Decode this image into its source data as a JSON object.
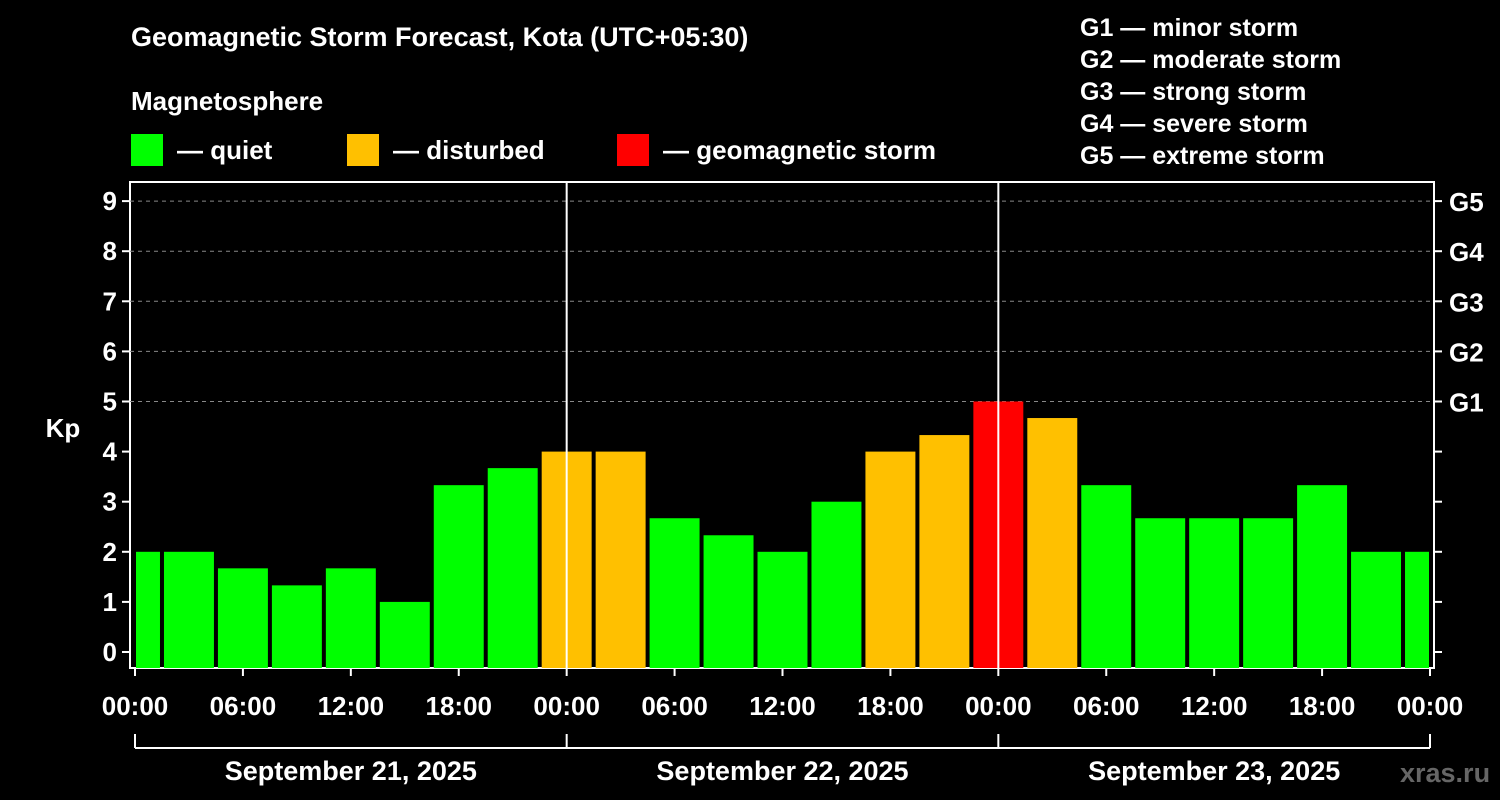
{
  "header": {
    "title": "Geomagnetic Storm Forecast, Kota (UTC+05:30)",
    "magnetosphere_label": "Magnetosphere"
  },
  "legend": [
    {
      "label": "— quiet",
      "color": "#00ff00"
    },
    {
      "label": "— disturbed",
      "color": "#ffc000"
    },
    {
      "label": "— geomagnetic storm",
      "color": "#ff0000"
    }
  ],
  "g_scale": [
    "G1 — minor storm",
    "G2 — moderate storm",
    "G3 — strong storm",
    "G4 — severe storm",
    "G5 — extreme storm"
  ],
  "watermark": "xras.ru",
  "chart_data": {
    "type": "bar",
    "title": "Geomagnetic Storm Forecast, Kota (UTC+05:30)",
    "ylabel": "Kp",
    "ylim": [
      0,
      9
    ],
    "y_ticks": [
      "0",
      "1",
      "2",
      "3",
      "4",
      "5",
      "6",
      "7",
      "8",
      "9"
    ],
    "right_ticks": [
      {
        "kp": 5,
        "label": "G1"
      },
      {
        "kp": 6,
        "label": "G2"
      },
      {
        "kp": 7,
        "label": "G3"
      },
      {
        "kp": 8,
        "label": "G4"
      },
      {
        "kp": 9,
        "label": "G5"
      }
    ],
    "x_tick_labels": [
      "00:00",
      "06:00",
      "12:00",
      "18:00",
      "00:00",
      "06:00",
      "12:00",
      "18:00",
      "00:00",
      "06:00",
      "12:00",
      "18:00",
      "00:00"
    ],
    "x_tick_hours": [
      0,
      6,
      12,
      18,
      24,
      30,
      36,
      42,
      48,
      54,
      60,
      66,
      72
    ],
    "x_range_hours": [
      0,
      72
    ],
    "day_labels": [
      "September 21, 2025",
      "September 22, 2025",
      "September 23, 2025"
    ],
    "day_boundaries_hours": [
      24,
      48
    ],
    "grid": "horizontal dashed at Kp 5-9",
    "bars": [
      {
        "start": 0,
        "end": 1.5,
        "kp": 2.0,
        "level": "quiet"
      },
      {
        "start": 1.5,
        "end": 4.5,
        "kp": 2.0,
        "level": "quiet"
      },
      {
        "start": 4.5,
        "end": 7.5,
        "kp": 1.67,
        "level": "quiet"
      },
      {
        "start": 7.5,
        "end": 10.5,
        "kp": 1.33,
        "level": "quiet"
      },
      {
        "start": 10.5,
        "end": 13.5,
        "kp": 1.67,
        "level": "quiet"
      },
      {
        "start": 13.5,
        "end": 16.5,
        "kp": 1.0,
        "level": "quiet"
      },
      {
        "start": 16.5,
        "end": 19.5,
        "kp": 3.33,
        "level": "quiet"
      },
      {
        "start": 19.5,
        "end": 22.5,
        "kp": 3.67,
        "level": "quiet"
      },
      {
        "start": 22.5,
        "end": 25.5,
        "kp": 4.0,
        "level": "disturbed"
      },
      {
        "start": 25.5,
        "end": 28.5,
        "kp": 4.0,
        "level": "disturbed"
      },
      {
        "start": 28.5,
        "end": 31.5,
        "kp": 2.67,
        "level": "quiet"
      },
      {
        "start": 31.5,
        "end": 34.5,
        "kp": 2.33,
        "level": "quiet"
      },
      {
        "start": 34.5,
        "end": 37.5,
        "kp": 2.0,
        "level": "quiet"
      },
      {
        "start": 37.5,
        "end": 40.5,
        "kp": 3.0,
        "level": "quiet"
      },
      {
        "start": 40.5,
        "end": 43.5,
        "kp": 4.0,
        "level": "disturbed"
      },
      {
        "start": 43.5,
        "end": 46.5,
        "kp": 4.33,
        "level": "disturbed"
      },
      {
        "start": 46.5,
        "end": 49.5,
        "kp": 5.0,
        "level": "storm"
      },
      {
        "start": 49.5,
        "end": 52.5,
        "kp": 4.67,
        "level": "disturbed"
      },
      {
        "start": 52.5,
        "end": 55.5,
        "kp": 3.33,
        "level": "quiet"
      },
      {
        "start": 55.5,
        "end": 58.5,
        "kp": 2.67,
        "level": "quiet"
      },
      {
        "start": 58.5,
        "end": 61.5,
        "kp": 2.67,
        "level": "quiet"
      },
      {
        "start": 61.5,
        "end": 64.5,
        "kp": 2.67,
        "level": "quiet"
      },
      {
        "start": 64.5,
        "end": 67.5,
        "kp": 3.33,
        "level": "quiet"
      },
      {
        "start": 67.5,
        "end": 70.5,
        "kp": 2.0,
        "level": "quiet"
      },
      {
        "start": 70.5,
        "end": 72,
        "kp": 2.0,
        "level": "quiet"
      }
    ],
    "level_colors": {
      "quiet": "#00ff00",
      "disturbed": "#ffc000",
      "storm": "#ff0000"
    }
  }
}
